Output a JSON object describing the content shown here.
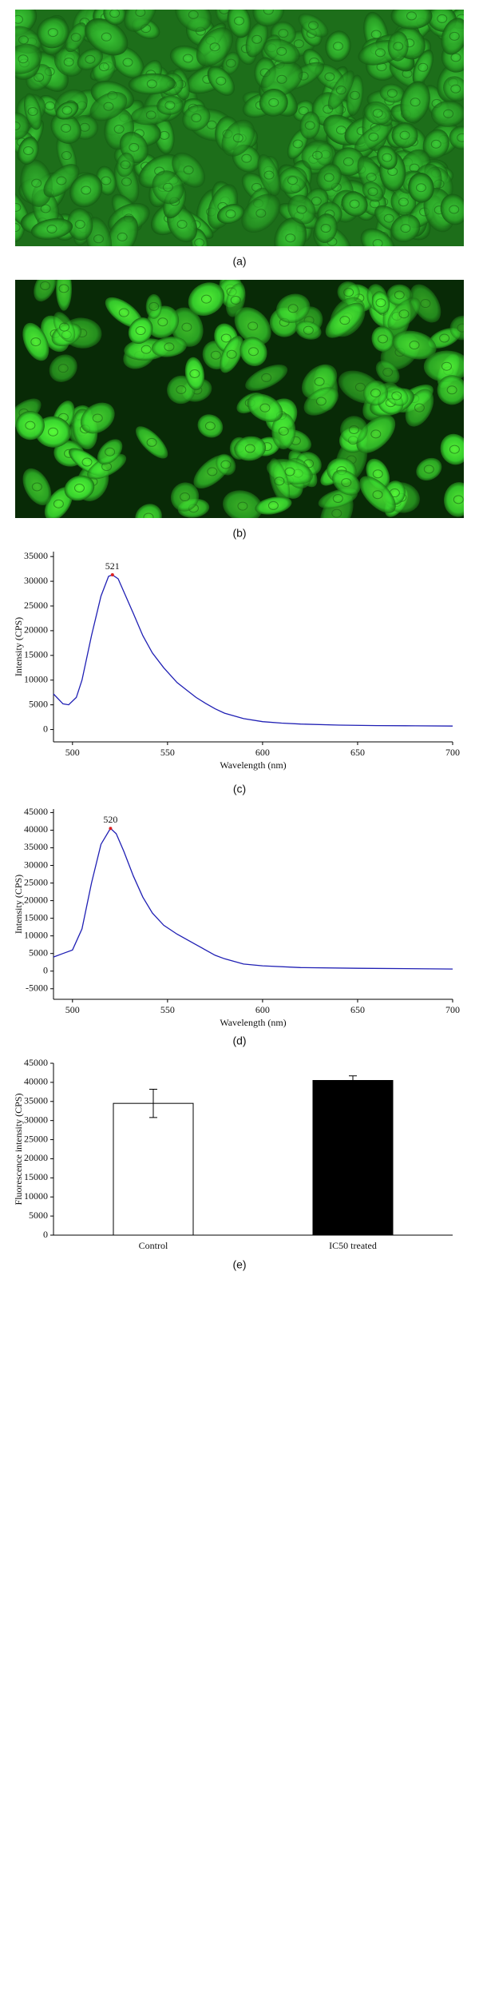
{
  "figure": {
    "labels": [
      "(a)",
      "(b)",
      "(c)",
      "(d)",
      "(e)"
    ]
  },
  "chart_data": [
    {
      "type": "line",
      "xlabel": "Wavelength (nm)",
      "ylabel": "Intensity (CPS)",
      "color": "#1f1fb4",
      "x": [
        490,
        495,
        498,
        502,
        505,
        510,
        515,
        519,
        521,
        524,
        528,
        532,
        537,
        542,
        548,
        555,
        560,
        565,
        570,
        575,
        580,
        590,
        600,
        610,
        620,
        640,
        660,
        680,
        700
      ],
      "values": [
        7200,
        5200,
        5000,
        6500,
        10000,
        19000,
        27000,
        31000,
        31300,
        30500,
        27000,
        23500,
        19000,
        15500,
        12500,
        9500,
        8000,
        6500,
        5300,
        4200,
        3300,
        2200,
        1600,
        1300,
        1100,
        900,
        800,
        750,
        700
      ],
      "peak": {
        "x": 521,
        "y": 31300
      },
      "xlim": [
        490,
        700
      ],
      "xticks": [
        500,
        550,
        600,
        650,
        700
      ],
      "ylim": [
        -2500,
        36000
      ],
      "yticks": [
        0,
        5000,
        10000,
        15000,
        20000,
        25000,
        30000,
        35000
      ]
    },
    {
      "type": "line",
      "xlabel": "Wavelength (nm)",
      "ylabel": "Intensity (CPS)",
      "color": "#1f1fb4",
      "x": [
        490,
        495,
        500,
        505,
        510,
        515,
        520,
        523,
        527,
        532,
        537,
        542,
        548,
        555,
        565,
        575,
        580,
        590,
        600,
        620,
        650,
        700
      ],
      "values": [
        4000,
        5000,
        6000,
        12000,
        25000,
        36000,
        40500,
        39000,
        34000,
        27000,
        21000,
        16500,
        13000,
        10500,
        7500,
        4500,
        3500,
        2000,
        1500,
        1000,
        800,
        600
      ],
      "peak": {
        "x": 520,
        "y": 40500
      },
      "xlim": [
        490,
        700
      ],
      "xticks": [
        500,
        550,
        600,
        650,
        700
      ],
      "ylim": [
        -8000,
        46000
      ],
      "yticks": [
        -5000,
        0,
        5000,
        10000,
        15000,
        20000,
        25000,
        30000,
        35000,
        40000,
        45000
      ]
    },
    {
      "type": "bar",
      "ylabel": "Fluorescence intensity (CPS)",
      "categories": [
        "Control",
        "IC50 treated"
      ],
      "values": [
        34500,
        40500
      ],
      "errors": [
        3700,
        1200
      ],
      "colors": [
        "#ffffff",
        "#000000"
      ],
      "ylim": [
        0,
        45000
      ],
      "yticks": [
        0,
        5000,
        10000,
        15000,
        20000,
        25000,
        30000,
        35000,
        40000,
        45000
      ]
    }
  ]
}
